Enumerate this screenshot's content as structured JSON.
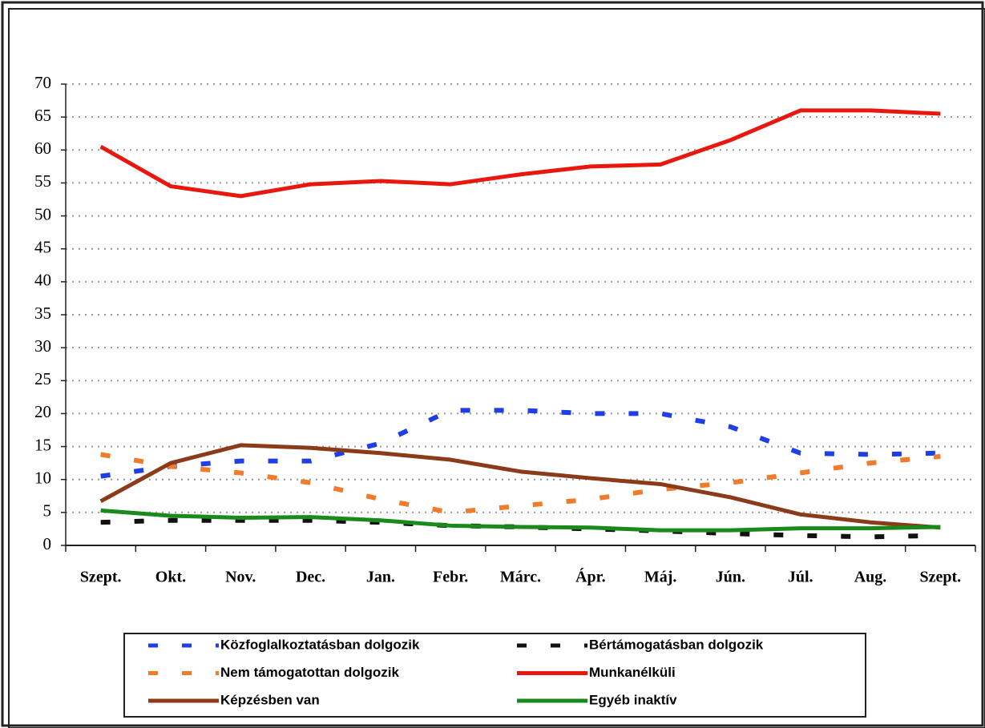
{
  "chart_data": {
    "type": "line",
    "categories": [
      "Szept.",
      "Okt.",
      "Nov.",
      "Dec.",
      "Jan.",
      "Febr.",
      "Márc.",
      "Ápr.",
      "Máj.",
      "Jún.",
      "Júl.",
      "Aug.",
      "Szept."
    ],
    "ylim": [
      0,
      70
    ],
    "yticks": [
      0,
      5,
      10,
      15,
      20,
      25,
      30,
      35,
      40,
      45,
      50,
      55,
      60,
      65,
      70
    ],
    "grid": true,
    "legend": "bottom",
    "series": [
      {
        "name": "Közfoglalkoztatásban dolgozik",
        "color": "#1f3fe6",
        "style": "dashed",
        "values": [
          10.5,
          12,
          12.8,
          12.8,
          15.5,
          20.5,
          20.5,
          20,
          20,
          18,
          14,
          13.8,
          14
        ]
      },
      {
        "name": "Bértámogatásban dolgozik",
        "color": "#111111",
        "style": "dashed",
        "values": [
          3.5,
          3.8,
          3.8,
          3.8,
          3.5,
          3,
          2.8,
          2.5,
          2.2,
          1.8,
          1.5,
          1.3,
          1.5
        ]
      },
      {
        "name": "Nem támogatottan dolgozik",
        "color": "#f07b2a",
        "style": "dashed",
        "values": [
          13.8,
          12,
          11,
          9.5,
          7,
          5,
          6,
          7,
          8.5,
          9.5,
          11,
          12.5,
          13.5
        ]
      },
      {
        "name": "Munkanélküli",
        "color": "#e8180f",
        "style": "solid",
        "values": [
          60.5,
          54.5,
          53,
          54.8,
          55.3,
          54.8,
          56.3,
          57.5,
          57.8,
          61.5,
          66,
          66,
          65.5
        ]
      },
      {
        "name": "Képzésben van",
        "color": "#8b3a1a",
        "style": "solid",
        "values": [
          6.7,
          12.5,
          15.2,
          14.8,
          14,
          13,
          11.2,
          10.2,
          9.3,
          7.3,
          4.7,
          3.5,
          2.7
        ]
      },
      {
        "name": "Egyéb inaktív",
        "color": "#1a8a1a",
        "style": "solid",
        "values": [
          5.3,
          4.5,
          4.2,
          4.3,
          3.8,
          3,
          2.8,
          2.7,
          2.3,
          2.3,
          2.6,
          2.6,
          2.8
        ]
      }
    ]
  }
}
